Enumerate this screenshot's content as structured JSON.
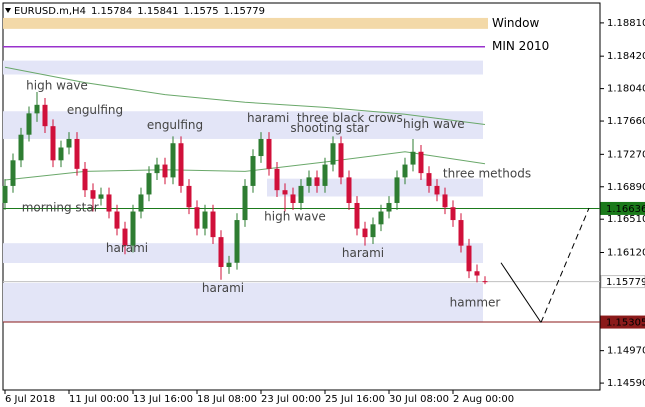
{
  "chart_data": {
    "type": "candlestick",
    "title": "EURUSD.m,H4",
    "categories": [
      "6 Jul 2018",
      null,
      null,
      null,
      null,
      null,
      null,
      null,
      "11 Jul 00:00",
      null,
      null,
      null,
      null,
      null,
      null,
      null,
      "13 Jul 16:00",
      null,
      null,
      null,
      null,
      null,
      null,
      null,
      "18 Jul 08:00",
      null,
      null,
      null,
      null,
      null,
      null,
      null,
      "23 Jul 00:00",
      null,
      null,
      null,
      null,
      null,
      null,
      null,
      "25 Jul 16:00",
      null,
      null,
      null,
      null,
      null,
      null,
      null,
      "30 Jul 08:00",
      null,
      null,
      null,
      null,
      null,
      null,
      null,
      "2 Aug 00:00",
      null,
      null,
      null,
      null
    ],
    "open": [
      1.167,
      1.169,
      1.172,
      1.175,
      1.1775,
      1.1785,
      1.176,
      1.172,
      1.1735,
      1.1745,
      1.171,
      1.1685,
      1.1675,
      1.168,
      1.166,
      1.164,
      1.162,
      1.166,
      1.168,
      1.1705,
      1.1715,
      1.17,
      1.174,
      1.169,
      1.1665,
      1.164,
      1.166,
      1.163,
      1.1595,
      1.16,
      1.165,
      1.169,
      1.1725,
      1.1745,
      1.171,
      1.1685,
      1.168,
      1.167,
      1.169,
      1.17,
      1.169,
      1.1715,
      1.174,
      1.17,
      1.167,
      1.164,
      1.163,
      1.1645,
      1.166,
      1.167,
      1.17,
      1.1715,
      1.173,
      1.1705,
      1.169,
      1.168,
      1.1665,
      1.165,
      1.162,
      1.159,
      1.15784
    ],
    "high": [
      1.1698,
      1.1728,
      1.1758,
      1.1783,
      1.18,
      1.1793,
      1.1768,
      1.1743,
      1.1753,
      1.1753,
      1.1718,
      1.1693,
      1.1688,
      1.1688,
      1.1668,
      1.1648,
      1.1668,
      1.1688,
      1.1713,
      1.1723,
      1.1723,
      1.1748,
      1.1748,
      1.1698,
      1.1673,
      1.1668,
      1.1668,
      1.1638,
      1.1608,
      1.1658,
      1.1698,
      1.1733,
      1.1753,
      1.1753,
      1.1718,
      1.1693,
      1.1688,
      1.1698,
      1.1708,
      1.1708,
      1.1723,
      1.1748,
      1.1748,
      1.1708,
      1.1678,
      1.1648,
      1.1653,
      1.1668,
      1.1678,
      1.1708,
      1.1723,
      1.1745,
      1.1738,
      1.1713,
      1.1698,
      1.1688,
      1.1673,
      1.1658,
      1.1628,
      1.1598,
      1.15841
    ],
    "low": [
      1.1662,
      1.1682,
      1.1712,
      1.1742,
      1.1765,
      1.1752,
      1.1712,
      1.1712,
      1.1727,
      1.1702,
      1.1677,
      1.166,
      1.1667,
      1.1652,
      1.1632,
      1.161,
      1.1612,
      1.1652,
      1.1672,
      1.1697,
      1.1692,
      1.1692,
      1.1682,
      1.1657,
      1.1632,
      1.1632,
      1.1622,
      1.158,
      1.1587,
      1.1592,
      1.1642,
      1.1682,
      1.1717,
      1.1702,
      1.1677,
      1.166,
      1.1662,
      1.1662,
      1.1682,
      1.1682,
      1.1682,
      1.1707,
      1.1692,
      1.1662,
      1.1632,
      1.162,
      1.1622,
      1.1637,
      1.1652,
      1.1662,
      1.1692,
      1.1707,
      1.1697,
      1.1682,
      1.1672,
      1.1657,
      1.1642,
      1.1612,
      1.1582,
      1.1577,
      1.1575
    ],
    "close": [
      1.169,
      1.172,
      1.175,
      1.1775,
      1.1785,
      1.176,
      1.172,
      1.1735,
      1.1745,
      1.171,
      1.1685,
      1.1675,
      1.168,
      1.166,
      1.164,
      1.162,
      1.166,
      1.168,
      1.1705,
      1.1715,
      1.17,
      1.174,
      1.169,
      1.1665,
      1.164,
      1.166,
      1.163,
      1.1595,
      1.16,
      1.165,
      1.169,
      1.1725,
      1.1745,
      1.171,
      1.1685,
      1.168,
      1.167,
      1.169,
      1.17,
      1.169,
      1.1715,
      1.174,
      1.17,
      1.167,
      1.164,
      1.163,
      1.1645,
      1.166,
      1.167,
      1.17,
      1.1715,
      1.173,
      1.1705,
      1.169,
      1.168,
      1.1665,
      1.165,
      1.162,
      1.159,
      1.1585,
      1.15779
    ],
    "up_color": "#2e7d32",
    "down_color": "#d0103a",
    "ylim": [
      1.14509,
      1.19043
    ],
    "yticks": [
      {
        "value": 1.1881,
        "label": "1.18810"
      },
      {
        "value": 1.1842,
        "label": "1.18420"
      },
      {
        "value": 1.1804,
        "label": "1.18040"
      },
      {
        "value": 1.1766,
        "label": "1.17660"
      },
      {
        "value": 1.1727,
        "label": "1.17270"
      },
      {
        "value": 1.1689,
        "label": "1.16890"
      },
      {
        "value": 1.1651,
        "label": "1.16510"
      },
      {
        "value": 1.1612,
        "label": "1.16120"
      },
      {
        "value": 1.1497,
        "label": "1.14970"
      },
      {
        "value": 1.1459,
        "label": "1.14590"
      }
    ],
    "levels": [
      {
        "value": 1.16636,
        "color": "#1b7a1b",
        "label_bg": "#1b7a1b"
      },
      {
        "value": 1.15779,
        "color": "#c0c0c0",
        "label_bg": "#ffffff"
      },
      {
        "value": 1.15305,
        "color": "#8b1a1a",
        "label_bg": "#8b1a1a"
      }
    ],
    "bands": [
      {
        "name": "Window",
        "low": 1.1874,
        "high": 1.18868,
        "color": "#f3d9a8",
        "text_color": "#e0a040"
      },
      {
        "name": "MIN 2010",
        "low": 1.18531,
        "high": 1.18531,
        "color": "#9932cc",
        "text_color": "#9932cc"
      }
    ],
    "zones": [
      {
        "from_index": 0,
        "low": 1.18205,
        "high": 1.18368
      },
      {
        "from_index": 0,
        "low": 1.1745,
        "high": 1.17775
      },
      {
        "from_index": 33,
        "low": 1.16776,
        "high": 1.16985
      },
      {
        "from_index": 0,
        "low": 1.15997,
        "high": 1.16229
      },
      {
        "from_index": 0,
        "low": 1.15299,
        "high": 1.15764
      }
    ],
    "zone_color": "#e3e5f7",
    "ma": [
      {
        "color": "#6aa86a",
        "x": [
          0,
          10,
          20,
          30,
          40,
          50,
          60
        ],
        "values": [
          1.1829,
          1.1811,
          1.1797,
          1.1788,
          1.1782,
          1.1774,
          1.1762
        ]
      },
      {
        "color": "#6aa86a",
        "x": [
          0,
          10,
          20,
          30,
          40,
          50,
          60
        ],
        "values": [
          1.1697,
          1.1707,
          1.1709,
          1.1707,
          1.1718,
          1.173,
          1.1716
        ]
      }
    ],
    "projection": {
      "x": [
        62,
        67,
        73
      ],
      "values": [
        1.16,
        1.153,
        1.1664
      ]
    },
    "annotations": [
      {
        "text": "high wave",
        "x": 6.5,
        "y": 1.18073
      },
      {
        "text": "engulfing",
        "x": 11.25,
        "y": 1.17782
      },
      {
        "text": "engulfing",
        "x": 21.25,
        "y": 1.17607
      },
      {
        "text": "harami",
        "x": 32.9,
        "y": 1.17689
      },
      {
        "text": "three black crows",
        "x": 43.1,
        "y": 1.17689
      },
      {
        "text": "shooting star",
        "x": 40.6,
        "y": 1.17573
      },
      {
        "text": "high wave",
        "x": 53.6,
        "y": 1.17619
      },
      {
        "text": "three methods",
        "x": 60.25,
        "y": 1.17038
      },
      {
        "text": "morning star",
        "x": 6.9,
        "y": 1.16643
      },
      {
        "text": "high wave",
        "x": 36.25,
        "y": 1.16538
      },
      {
        "text": "harami",
        "x": 15.25,
        "y": 1.16166
      },
      {
        "text": "harami",
        "x": 44.75,
        "y": 1.16108
      },
      {
        "text": "harami",
        "x": 27.25,
        "y": 1.15701
      },
      {
        "text": "hammer",
        "x": 58.75,
        "y": 1.15526
      }
    ]
  }
}
